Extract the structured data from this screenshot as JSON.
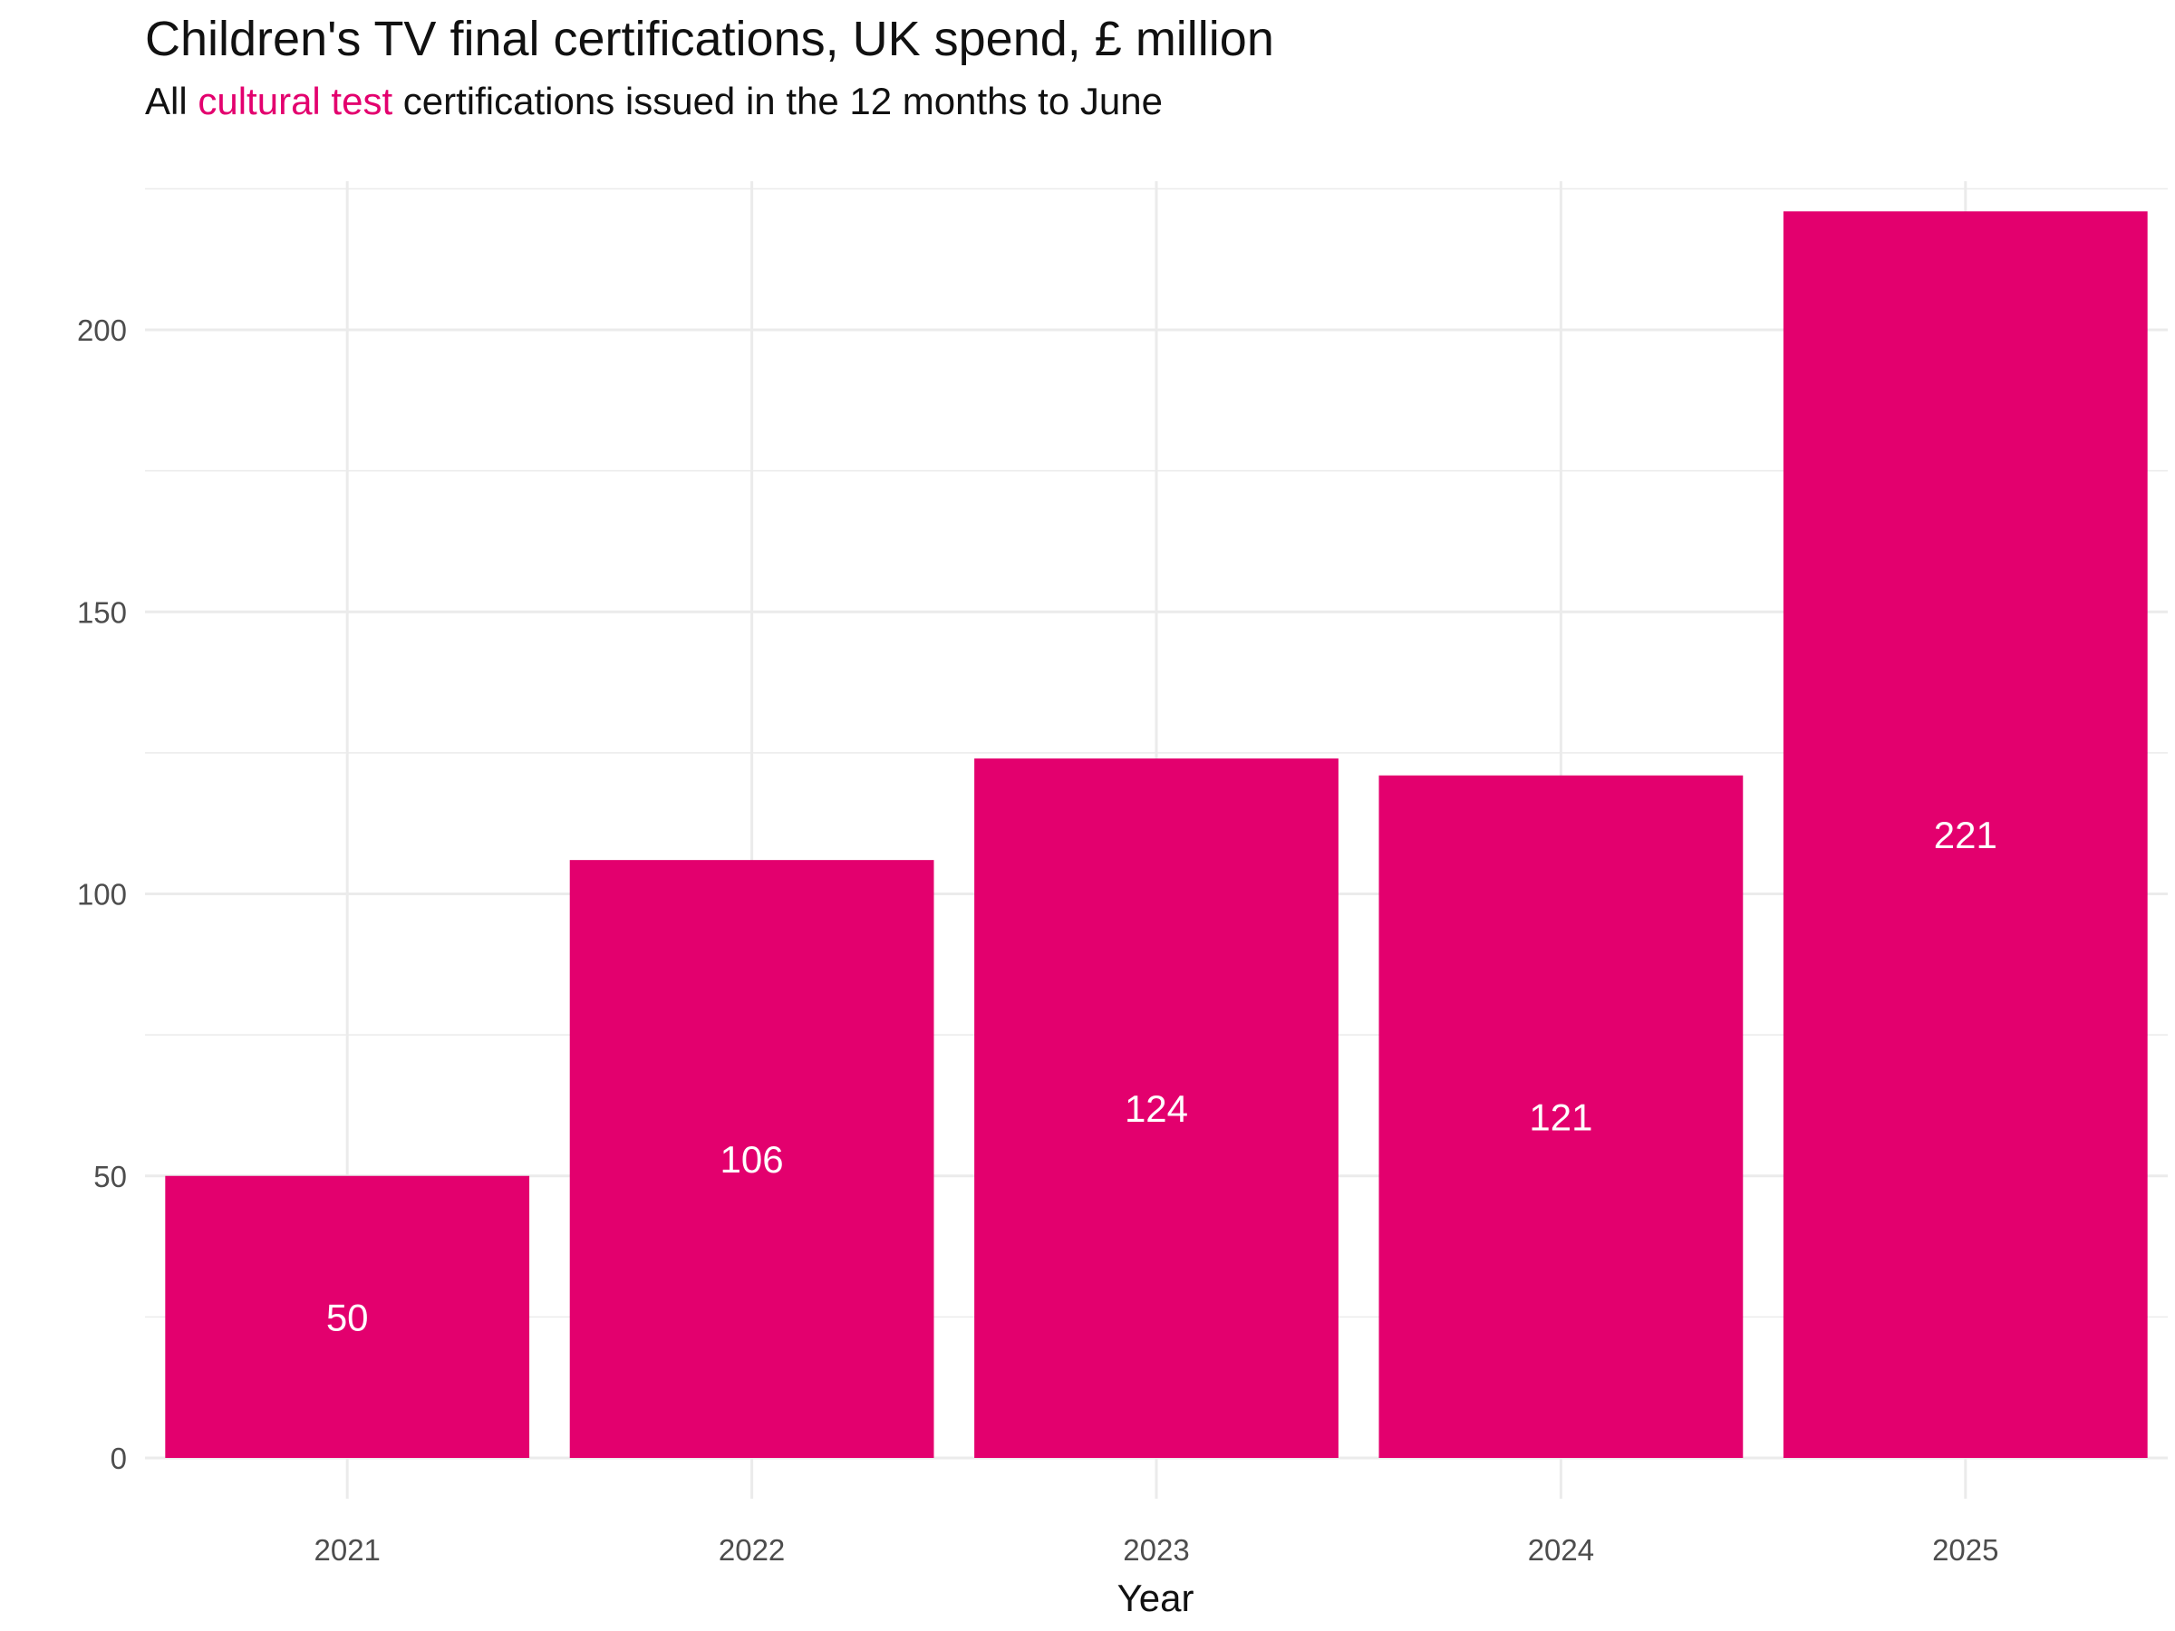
{
  "chart_data": {
    "type": "bar",
    "title": "Children's TV final certifications, UK spend, £ million",
    "subtitle": {
      "prefix": "All ",
      "highlight": "cultural test",
      "suffix": " certifications issued in the 12 months to June"
    },
    "categories": [
      "2021",
      "2022",
      "2023",
      "2024",
      "2025"
    ],
    "values": [
      50,
      106,
      124,
      121,
      221
    ],
    "data_labels": [
      "50",
      "106",
      "124",
      "121",
      "221"
    ],
    "xlabel": "Year",
    "ylabel": "",
    "ylim": [
      0,
      225
    ],
    "yticks": [
      0,
      50,
      100,
      150,
      200
    ],
    "ytick_labels": [
      "0",
      "50",
      "100",
      "150",
      "200"
    ],
    "grid": true,
    "legend": "none",
    "colors": {
      "bar": "#E3006E",
      "highlight": "#E3006E",
      "grid": "#ebebeb",
      "label": "#ffffff"
    }
  }
}
